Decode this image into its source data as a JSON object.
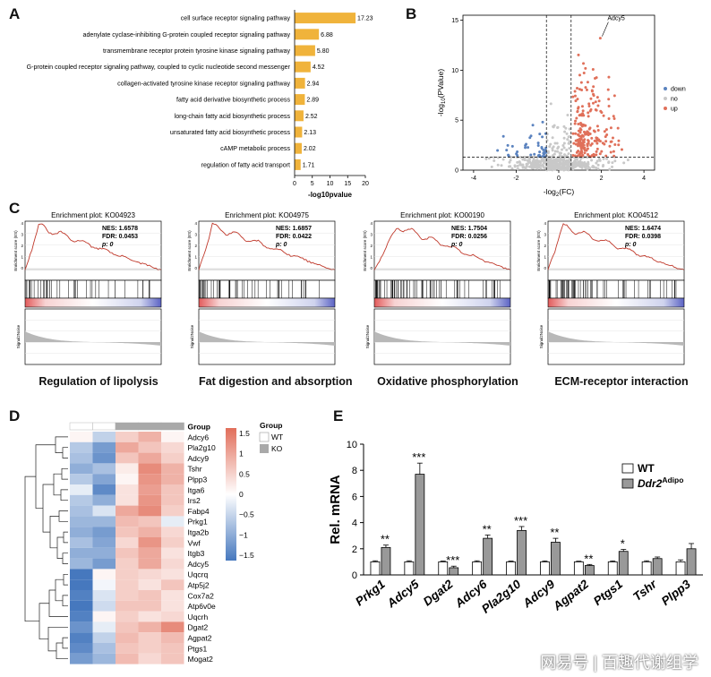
{
  "panels": {
    "a": "A",
    "b": "B",
    "c": "C",
    "d": "D",
    "e": "E"
  },
  "panelA": {
    "chart_data": {
      "type": "bar",
      "orientation": "horizontal",
      "categories": [
        "cell surface receptor signaling pathway",
        "adenylate cyclase-inhibiting G-protein coupled receptor signaling pathway",
        "transmembrane receptor protein tyrosine kinase signaling pathway",
        "G-protein coupled receptor signaling pathway, coupled to cyclic nucleotide second messenger",
        "collagen-activated tyrosine kinase receptor signaling pathway",
        "fatty acid derivative biosynthetic process",
        "long-chain fatty acid biosynthetic process",
        "unsaturated fatty acid biosynthetic process",
        "cAMP metabolic process",
        "regulation of fatty acid transport"
      ],
      "values": [
        17.23,
        6.88,
        5.8,
        4.52,
        2.94,
        2.89,
        2.52,
        2.13,
        2.02,
        1.71
      ],
      "value_labels": [
        "17.23",
        "6.88",
        "5.80",
        "4.52",
        "2.94",
        "2.89",
        "2.52",
        "2.13",
        "2.02",
        "1.71"
      ],
      "xlim": [
        0,
        20
      ],
      "xticks": [
        "0",
        "5",
        "10",
        "15",
        "20"
      ],
      "xlabel": "-log10pvalue",
      "color": "#f0b33b"
    }
  },
  "panelB": {
    "chart_data": {
      "type": "scatter",
      "xlim": [
        -4.5,
        4.5
      ],
      "ylim": [
        0,
        15.5
      ],
      "xticks": [
        "-4",
        "-2",
        "0",
        "2",
        "4"
      ],
      "yticks": [
        "0",
        "5",
        "10",
        "15"
      ],
      "xlabel_main": "-log",
      "xlabel_sub": "2",
      "xlabel_tail": "(FC)",
      "ylabel_main": "-log",
      "ylabel_sub": "10",
      "ylabel_tail": "(PValue)",
      "thresholds": {
        "fc": [
          -0.58,
          0.58
        ],
        "p": 1.3
      },
      "legend": [
        "down",
        "no",
        "up"
      ],
      "colors": {
        "down": "#5b83bf",
        "no": "#c8c8c8",
        "up": "#e0705a"
      },
      "annotation": {
        "label": "Adcy5",
        "x": 1.95,
        "y": 13.2
      }
    }
  },
  "panelC": {
    "plots": [
      {
        "title": "Enrichment plot: KO04923",
        "nes": "NES: 1.6578",
        "fdr": "FDR: 0.0453",
        "p": "p: 0",
        "caption": "Regulation of  lipolysis"
      },
      {
        "title": "Enrichment plot: KO04975",
        "nes": "NES: 1.6857",
        "fdr": "FDR: 0.0422",
        "p": "p: 0",
        "caption": "Fat digestion and absorption"
      },
      {
        "title": "Enrichment plot: KO00190",
        "nes": "NES: 1.7504",
        "fdr": "FDR: 0.0256",
        "p": "p: 0",
        "caption": "Oxidative phosphorylation"
      },
      {
        "title": "Enrichment plot: KO04512",
        "nes": "NES: 1.6474",
        "fdr": "FDR: 0.0398",
        "p": "p: 0",
        "caption": "ECM-receptor interaction"
      }
    ]
  },
  "panelD": {
    "group_label": "Group",
    "legend_title": "Group",
    "legend_items": [
      "WT",
      "KO"
    ],
    "colorbar_ticks": [
      "1.5",
      "1",
      "0.5",
      "0",
      "−0.5",
      "−1",
      "−1.5"
    ],
    "genes": [
      "Adcy6",
      "Pla2g10",
      "Adcy9",
      "Tshr",
      "Plpp3",
      "Itga6",
      "Irs2",
      "Fabp4",
      "Prkg1",
      "Itga2b",
      "Vwf",
      "Itgb3",
      "Adcy5",
      "Uqcrq",
      "Atp5j2",
      "Cox7a2",
      "Atp6v0e",
      "Uqcrh",
      "Dgat2",
      "Agpat2",
      "Ptgs1",
      "Mogat2"
    ],
    "chart_data": {
      "type": "heatmap",
      "columns": [
        "WT",
        "WT",
        "KO",
        "KO",
        "KO"
      ],
      "values": [
        [
          0.1,
          -0.5,
          0.5,
          0.8,
          0.1
        ],
        [
          -0.6,
          -1.1,
          0.9,
          0.6,
          0.4
        ],
        [
          -0.7,
          -1.2,
          0.6,
          0.9,
          0.5
        ],
        [
          -0.9,
          -0.7,
          0.2,
          1.2,
          0.8
        ],
        [
          -0.6,
          -1.0,
          0.1,
          1.1,
          0.8
        ],
        [
          -0.2,
          -1.3,
          0.3,
          1.0,
          0.6
        ],
        [
          -0.6,
          -0.9,
          0.3,
          1.1,
          0.6
        ],
        [
          -0.7,
          -0.3,
          0.9,
          1.2,
          0.5
        ],
        [
          -0.8,
          -0.8,
          0.7,
          0.6,
          -0.2
        ],
        [
          -0.9,
          -1.1,
          0.6,
          0.8,
          0.4
        ],
        [
          -0.7,
          -1.0,
          0.4,
          1.1,
          0.5
        ],
        [
          -0.9,
          -0.9,
          0.6,
          0.9,
          0.3
        ],
        [
          -0.8,
          -1.1,
          0.5,
          0.9,
          0.4
        ],
        [
          -1.5,
          0.1,
          0.5,
          0.4,
          0.3
        ],
        [
          -1.5,
          -0.1,
          0.5,
          0.3,
          0.6
        ],
        [
          -1.4,
          -0.3,
          0.5,
          0.6,
          0.3
        ],
        [
          -1.5,
          -0.4,
          0.6,
          0.6,
          0.3
        ],
        [
          -1.4,
          0.1,
          0.5,
          0.3,
          0.4
        ],
        [
          -1.2,
          -0.2,
          0.6,
          0.8,
          1.2
        ],
        [
          -1.4,
          -0.5,
          0.7,
          0.5,
          0.7
        ],
        [
          -1.3,
          -0.7,
          0.6,
          0.5,
          0.6
        ],
        [
          -1.1,
          -0.8,
          0.7,
          0.4,
          0.6
        ]
      ]
    }
  },
  "panelE": {
    "chart_data": {
      "type": "bar",
      "categories": [
        "Prkg1",
        "Adcy5",
        "Dgat2",
        "Adcy6",
        "Pla2g10",
        "Adcy9",
        "Agpat2",
        "Ptgs1",
        "Tshr",
        "Plpp3"
      ],
      "series": [
        {
          "name": "WT",
          "values": [
            1.0,
            1.0,
            1.0,
            1.0,
            1.0,
            1.0,
            1.0,
            1.0,
            1.0,
            1.0
          ],
          "errors": [
            0.08,
            0.08,
            0.06,
            0.08,
            0.06,
            0.07,
            0.05,
            0.07,
            0.08,
            0.15
          ]
        },
        {
          "name": "Ddr2",
          "name_sup": "Adipo",
          "values": [
            2.1,
            7.7,
            0.55,
            2.8,
            3.4,
            2.5,
            0.72,
            1.8,
            1.25,
            2.0
          ],
          "errors": [
            0.18,
            0.85,
            0.12,
            0.25,
            0.3,
            0.3,
            0.08,
            0.15,
            0.12,
            0.4
          ]
        }
      ],
      "significance": [
        "**",
        "***",
        "***",
        "**",
        "***",
        "**",
        "**",
        "*",
        "",
        ""
      ],
      "ylim": [
        0,
        10
      ],
      "yticks": [
        "0",
        "2",
        "4",
        "6",
        "8",
        "10"
      ],
      "ylabel": "Rel. mRNA"
    }
  },
  "watermark": "网易号 | 百趣代谢组学"
}
